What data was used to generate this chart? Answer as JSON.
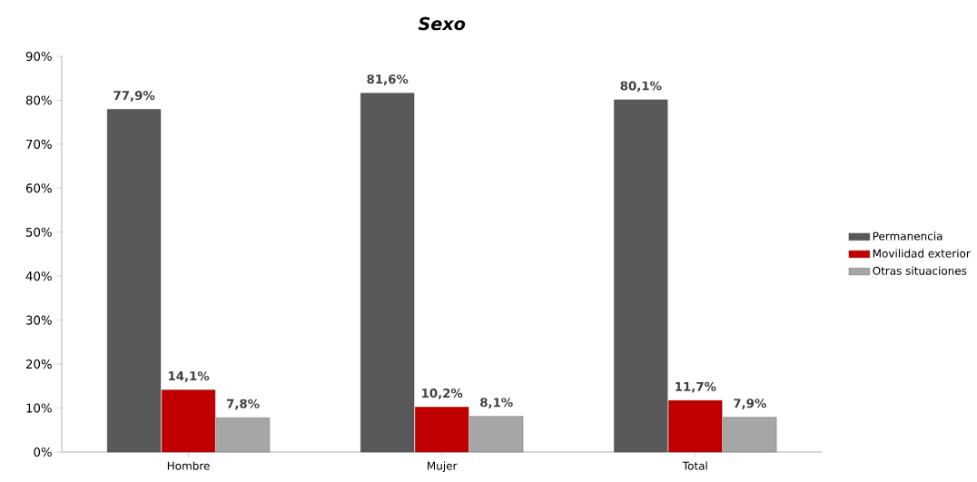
{
  "chart_data": {
    "type": "bar",
    "title": "Sexo",
    "categories": [
      "Hombre",
      "Mujer",
      "Total"
    ],
    "series": [
      {
        "name": "Permanencia",
        "color": "#595959",
        "values": [
          77.9,
          81.6,
          80.1
        ],
        "value_labels": [
          "77,9%",
          "81,6%",
          "80,1%"
        ]
      },
      {
        "name": "Movilidad exterior",
        "color": "#c00000",
        "values": [
          14.1,
          10.2,
          11.7
        ],
        "value_labels": [
          "14,1%",
          "10,2%",
          "11,7%"
        ]
      },
      {
        "name": "Otras situaciones",
        "color": "#a6a6a6",
        "values": [
          7.8,
          8.1,
          7.9
        ],
        "value_labels": [
          "7,8%",
          "8,1%",
          "7,9%"
        ]
      }
    ],
    "ylim": [
      0,
      90
    ],
    "yticks": [
      {
        "value": 0,
        "label": "0%"
      },
      {
        "value": 10,
        "label": "10%"
      },
      {
        "value": 20,
        "label": "20%"
      },
      {
        "value": 30,
        "label": "30%"
      },
      {
        "value": 40,
        "label": "40%"
      },
      {
        "value": 50,
        "label": "50%"
      },
      {
        "value": 60,
        "label": "60%"
      },
      {
        "value": 70,
        "label": "70%"
      },
      {
        "value": 80,
        "label": "80%"
      },
      {
        "value": 90,
        "label": "90%"
      }
    ],
    "grid": false,
    "legend": "right"
  }
}
